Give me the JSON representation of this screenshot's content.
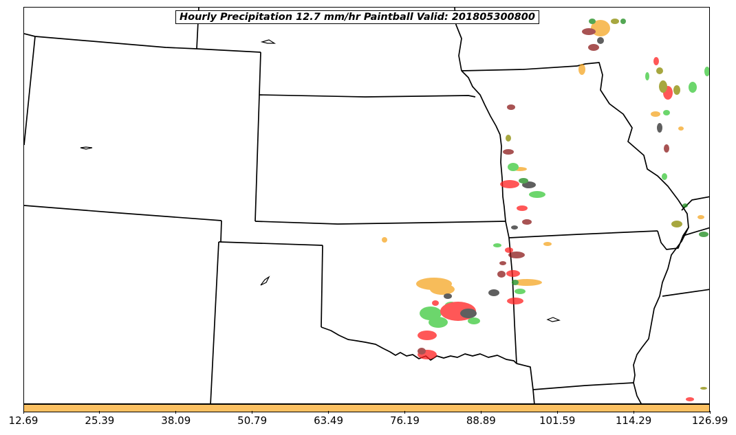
{
  "title": "Hourly Precipitation 12.7 mm/hr Paintball Valid: 201805300800",
  "colorbar": {
    "color": "#fbc062",
    "tick_labels": [
      "12.69",
      "25.39",
      "38.09",
      "50.79",
      "63.49",
      "76.19",
      "88.89",
      "101.59",
      "114.29",
      "126.99"
    ]
  },
  "member_colors": [
    "#ff0000",
    "#f5a623",
    "#3cc93c",
    "#8b1a1a",
    "#222222",
    "#8a8a00",
    "#1a8a1a"
  ]
}
